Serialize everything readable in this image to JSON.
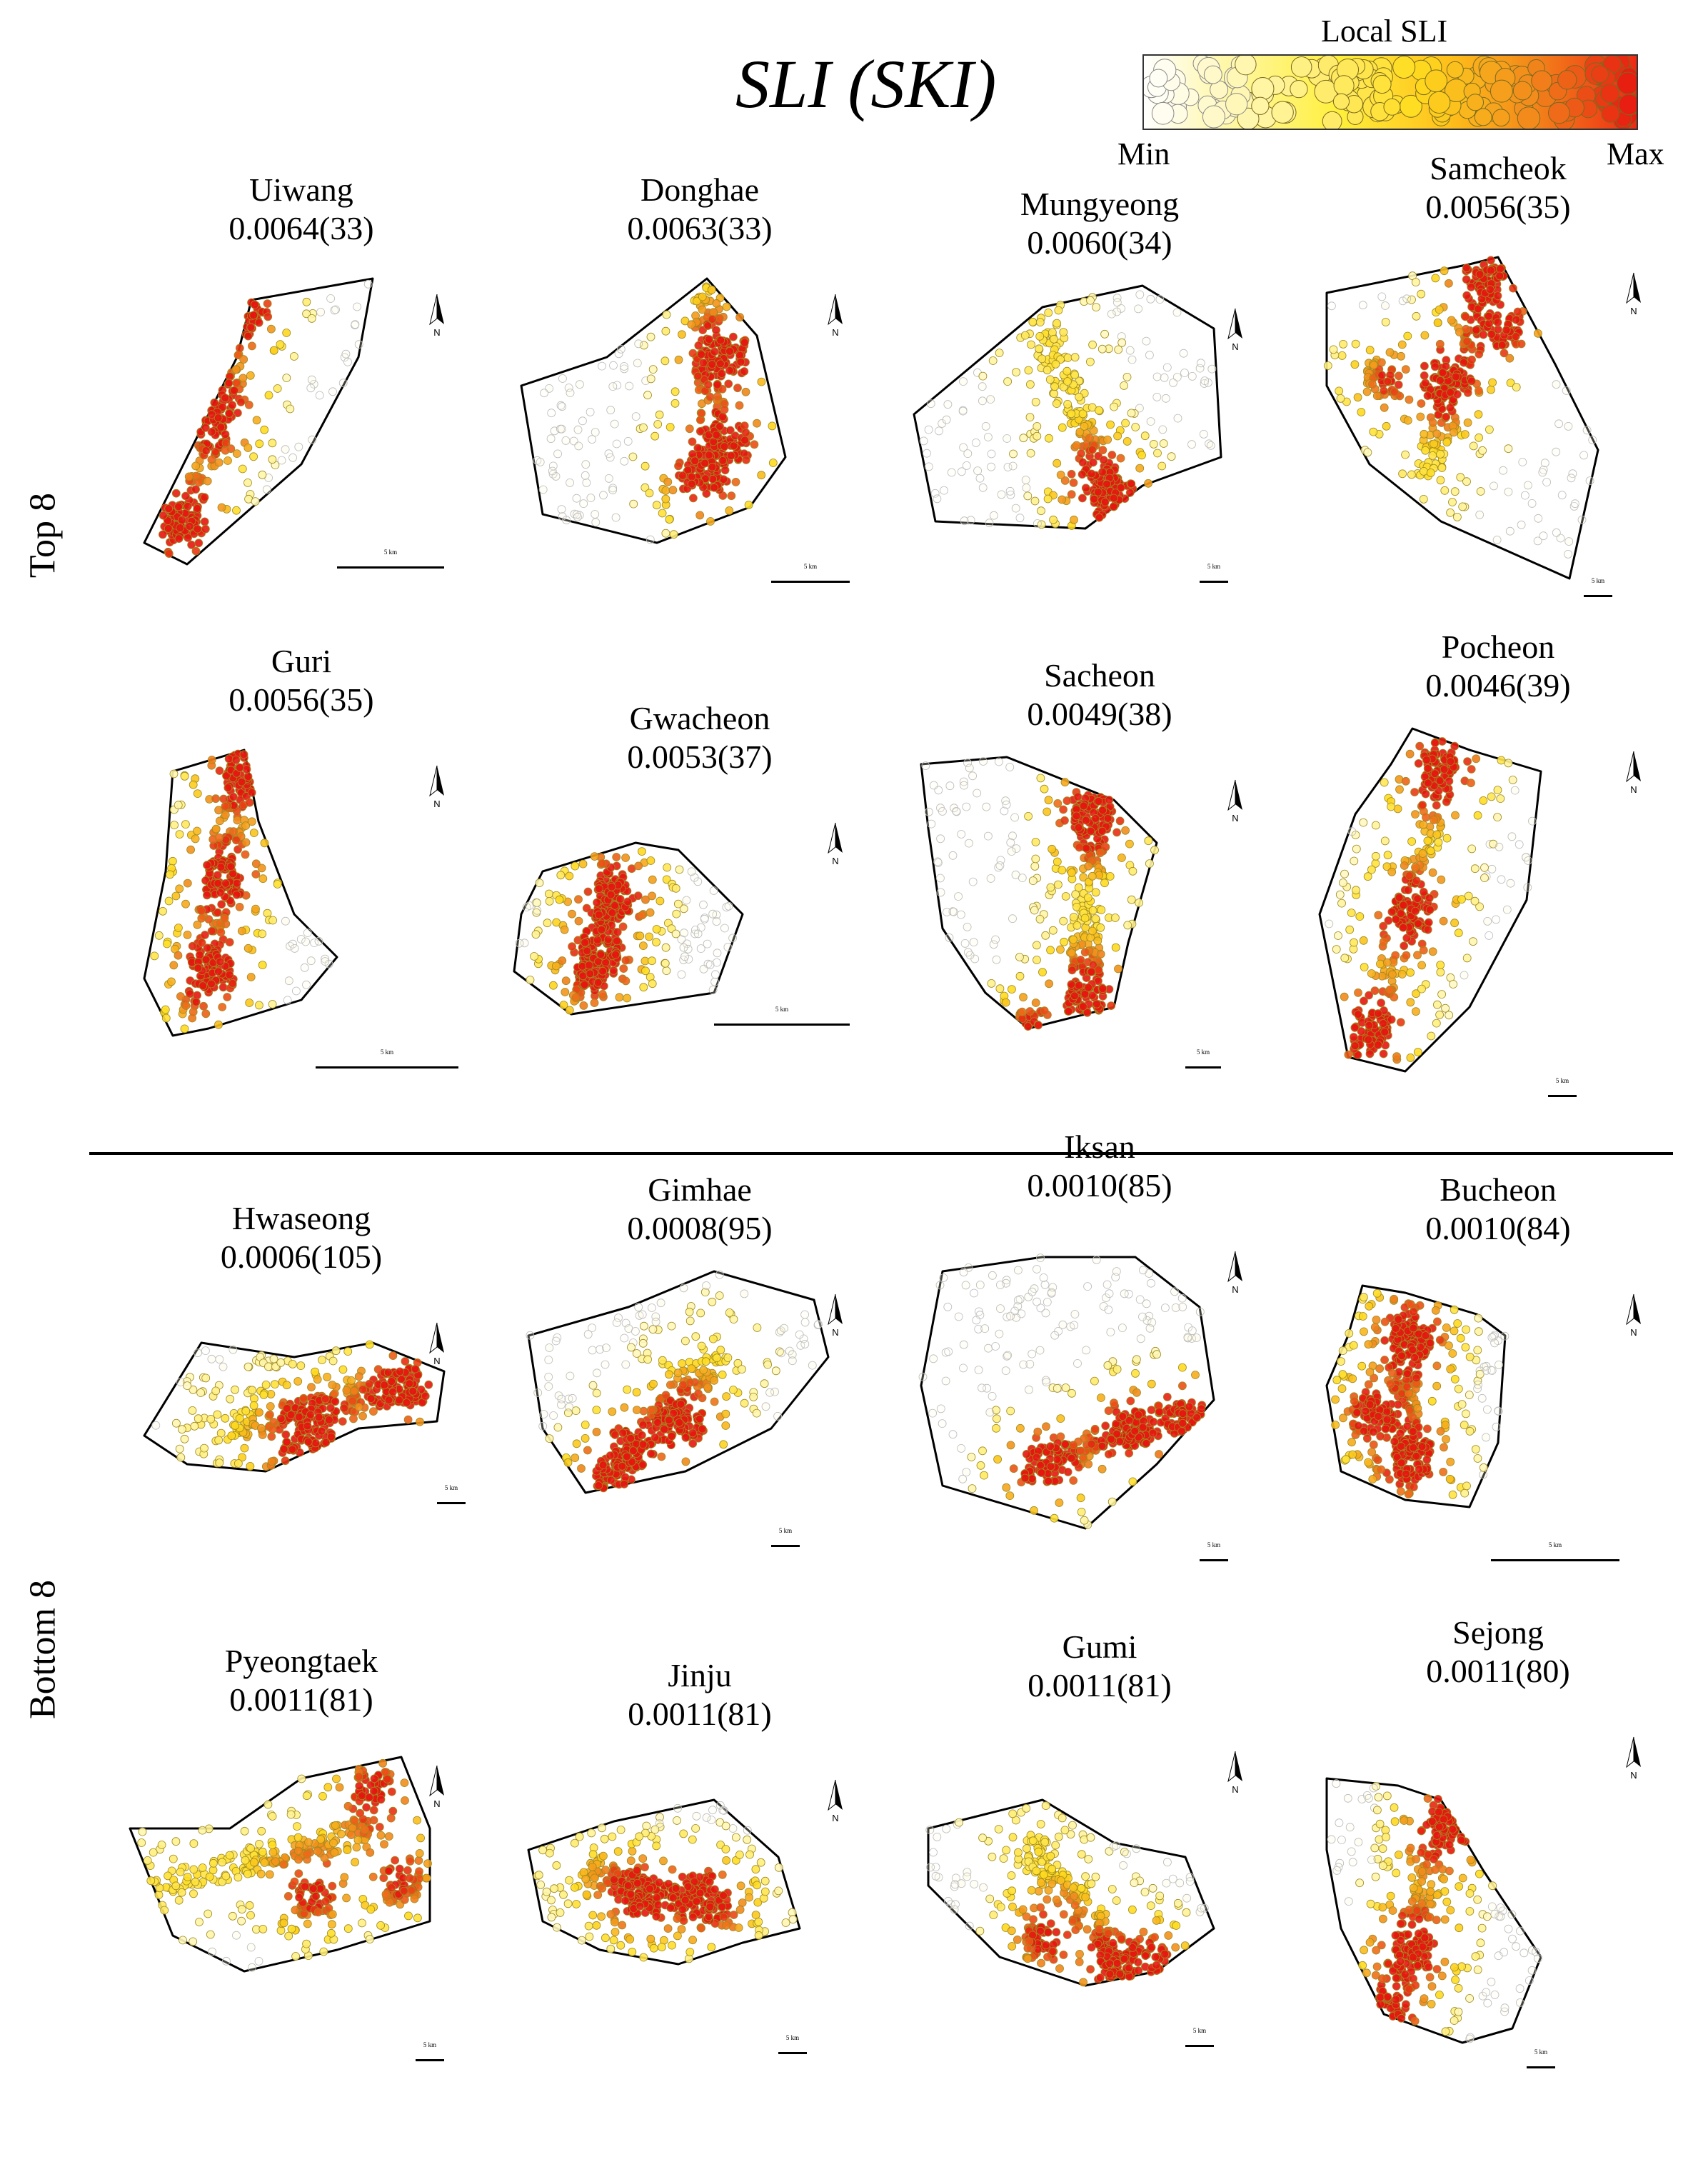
{
  "header": {
    "title": "SLI (SKI)",
    "legend_title": "Local SLI",
    "legend_min": "Min",
    "legend_max": "Max"
  },
  "groups": {
    "top": "Top 8",
    "bottom": "Bottom 8"
  },
  "scale_label": "5 km",
  "north_label": "N",
  "colors": {
    "low": "#ffffff",
    "mid_low": "#fff27a",
    "mid": "#ffd21a",
    "mid_high": "#f08a1a",
    "high": "#e8140f"
  },
  "top8": [
    {
      "name": "Uiwang",
      "score": "0.0064(33)"
    },
    {
      "name": "Donghae",
      "score": "0.0063(33)"
    },
    {
      "name": "Mungyeong",
      "score": "0.0060(34)"
    },
    {
      "name": "Samcheok",
      "score": "0.0056(35)"
    },
    {
      "name": "Guri",
      "score": "0.0056(35)"
    },
    {
      "name": "Gwacheon",
      "score": "0.0053(37)"
    },
    {
      "name": "Sacheon",
      "score": "0.0049(38)"
    },
    {
      "name": "Pocheon",
      "score": "0.0046(39)"
    }
  ],
  "bottom8": [
    {
      "name": "Hwaseong",
      "score": "0.0006(105)"
    },
    {
      "name": "Gimhae",
      "score": "0.0008(95)"
    },
    {
      "name": "Iksan",
      "score": "0.0010(85)"
    },
    {
      "name": "Bucheon",
      "score": "0.0010(84)"
    },
    {
      "name": "Pyeongtaek",
      "score": "0.0011(81)"
    },
    {
      "name": "Jinju",
      "score": "0.0011(81)"
    },
    {
      "name": "Gumi",
      "score": "0.0011(81)"
    },
    {
      "name": "Sejong",
      "score": "0.0011(80)"
    }
  ]
}
